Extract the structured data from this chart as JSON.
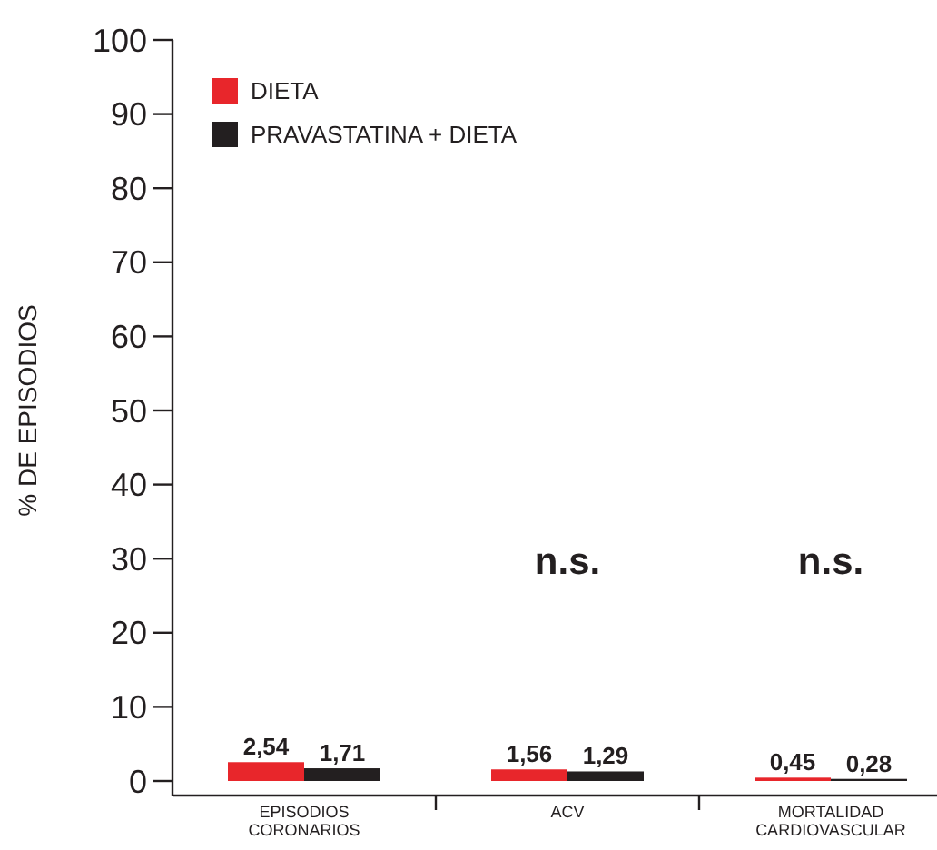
{
  "chart_data": {
    "type": "bar",
    "ylabel": "% DE EPISODIOS",
    "categories": [
      "EPISODIOS CORONARIOS",
      "ACV",
      "MORTALIDAD CARDIOVASCULAR"
    ],
    "series": [
      {
        "name": "DIETA",
        "color": "#e8262b",
        "values": [
          2.54,
          1.56,
          0.45
        ],
        "value_labels": [
          "2,54",
          "1,56",
          "0,45"
        ]
      },
      {
        "name": "PRAVASTATINA + DIETA",
        "color": "#231f20",
        "values": [
          1.71,
          1.29,
          0.28
        ],
        "value_labels": [
          "1,71",
          "1,29",
          "0,28"
        ]
      }
    ],
    "ylim": [
      0,
      100
    ],
    "yticks": [
      0,
      10,
      20,
      30,
      40,
      50,
      60,
      70,
      80,
      90,
      100
    ],
    "grid": false,
    "legend": "top left",
    "annotations": [
      "n.s.",
      "n.s."
    ]
  }
}
